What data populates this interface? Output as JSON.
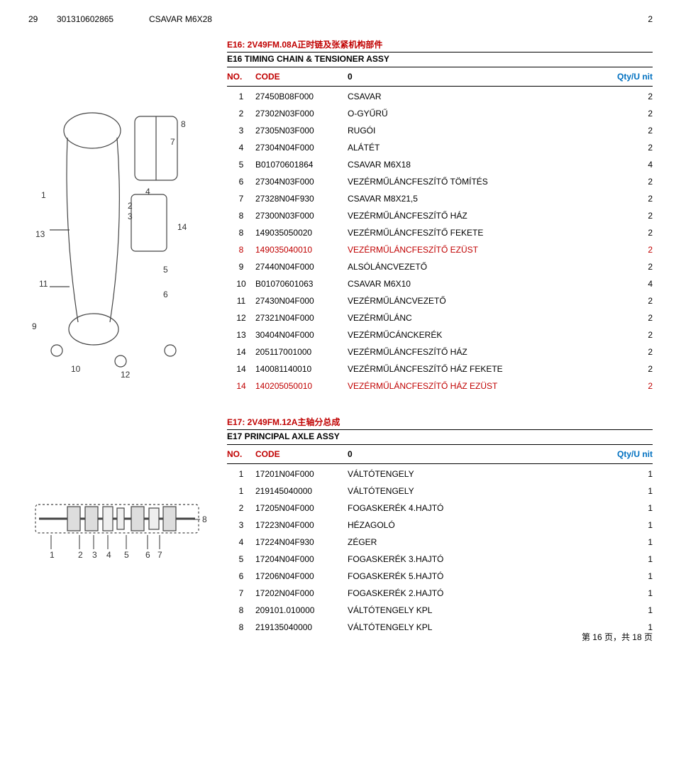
{
  "topRow": {
    "no": "29",
    "code": "301310602865",
    "desc": "CSAVAR M6X28",
    "qty": "2"
  },
  "section1": {
    "title": "E16: 2V49FM.08A正时链及张紧机构部件",
    "sub": "E16 TIMING CHAIN & TENSIONER ASSY",
    "header": {
      "no": "NO.",
      "code": "CODE",
      "zero": "0",
      "qty": "Qty/U nit"
    },
    "rows": [
      {
        "n": "1",
        "c": "27450B08F000",
        "d": "CSAVAR",
        "q": "2",
        "red": false
      },
      {
        "n": "2",
        "c": "27302N03F000",
        "d": "O-GYŰRŰ",
        "q": "2",
        "red": false
      },
      {
        "n": "3",
        "c": "27305N03F000",
        "d": "RUGÓI",
        "q": "2",
        "red": false
      },
      {
        "n": "4",
        "c": "27304N04F000",
        "d": "ALÁTÉT",
        "q": "2",
        "red": false
      },
      {
        "n": "5",
        "c": "B01070601864",
        "d": "CSAVAR M6X18",
        "q": "4",
        "red": false
      },
      {
        "n": "6",
        "c": "27304N03F000",
        "d": "VEZÉRMŰLÁNCFESZÍTŐ TÖMÍTÉS",
        "q": "2",
        "red": false
      },
      {
        "n": "7",
        "c": "27328N04F930",
        "d": "CSAVAR M8X21,5",
        "q": "2",
        "red": false
      },
      {
        "n": "8",
        "c": "27300N03F000",
        "d": "VEZÉRMŰLÁNCFESZÍTŐ HÁZ",
        "q": "2",
        "red": false
      },
      {
        "n": "8",
        "c": "149035050020",
        "d": "VEZÉRMŰLÁNCFESZÍTŐ FEKETE",
        "q": "2",
        "red": false
      },
      {
        "n": "8",
        "c": "149035040010",
        "d": "VEZÉRMŰLÁNCFESZÍTŐ EZÜST",
        "q": "2",
        "red": true
      },
      {
        "n": "9",
        "c": "27440N04F000",
        "d": "ALSÓLÁNCVEZETŐ",
        "q": "2",
        "red": false
      },
      {
        "n": "10",
        "c": "B01070601063",
        "d": "CSAVAR M6X10",
        "q": "4",
        "red": false
      },
      {
        "n": "11",
        "c": "27430N04F000",
        "d": "VEZÉRMŰLÁNCVEZETŐ",
        "q": "2",
        "red": false
      },
      {
        "n": "12",
        "c": "27321N04F000",
        "d": "VEZÉRMŰLÁNC",
        "q": "2",
        "red": false
      },
      {
        "n": "13",
        "c": "30404N04F000",
        "d": "VEZÉRMŰCÁNCKERÉK",
        "q": "2",
        "red": false
      },
      {
        "n": "14",
        "c": "205117001000",
        "d": "VEZÉRMŰLÁNCFESZÍTŐ HÁZ",
        "q": "2",
        "red": false
      },
      {
        "n": "14",
        "c": "140081140010",
        "d": "VEZÉRMŰLÁNCFESZÍTŐ HÁZ FEKETE",
        "q": "2",
        "red": false
      },
      {
        "n": "14",
        "c": "140205050010",
        "d": "VEZÉRMŰLÁNCFESZÍTŐ HÁZ EZÜST",
        "q": "2",
        "red": true
      }
    ]
  },
  "section2": {
    "title": "E17: 2V49FM.12A主轴分总成",
    "sub": "E17 PRINCIPAL AXLE ASSY",
    "header": {
      "no": "NO.",
      "code": "CODE",
      "zero": "0",
      "qty": "Qty/U nit"
    },
    "rows": [
      {
        "n": "1",
        "c": "17201N04F000",
        "d": "VÁLTÓTENGELY",
        "q": "1",
        "red": false
      },
      {
        "n": "1",
        "c": "219145040000",
        "d": "VÁLTÓTENGELY",
        "q": "1",
        "red": false
      },
      {
        "n": "2",
        "c": "17205N04F000",
        "d": "FOGASKERÉK 4.HAJTÓ",
        "q": "1",
        "red": false
      },
      {
        "n": "3",
        "c": "17223N04F000",
        "d": "HÉZAGOLÓ",
        "q": "1",
        "red": false
      },
      {
        "n": "4",
        "c": "17224N04F930",
        "d": "ZÉGER",
        "q": "1",
        "red": false
      },
      {
        "n": "5",
        "c": "17204N04F000",
        "d": "FOGASKERÉK 3.HAJTÓ",
        "q": "1",
        "red": false
      },
      {
        "n": "6",
        "c": "17206N04F000",
        "d": "FOGASKERÉK 5.HAJTÓ",
        "q": "1",
        "red": false
      },
      {
        "n": "7",
        "c": "17202N04F000",
        "d": "FOGASKERÉK 2.HAJTÓ",
        "q": "1",
        "red": false
      },
      {
        "n": "8",
        "c": "209101.010000",
        "d": "VÁLTÓTENGELY KPL",
        "q": "1",
        "red": false
      },
      {
        "n": "8",
        "c": "219135040000",
        "d": "VÁLTÓTENGELY KPL",
        "q": "1",
        "red": false
      }
    ]
  },
  "footer": "第 16 页，共 18 页"
}
